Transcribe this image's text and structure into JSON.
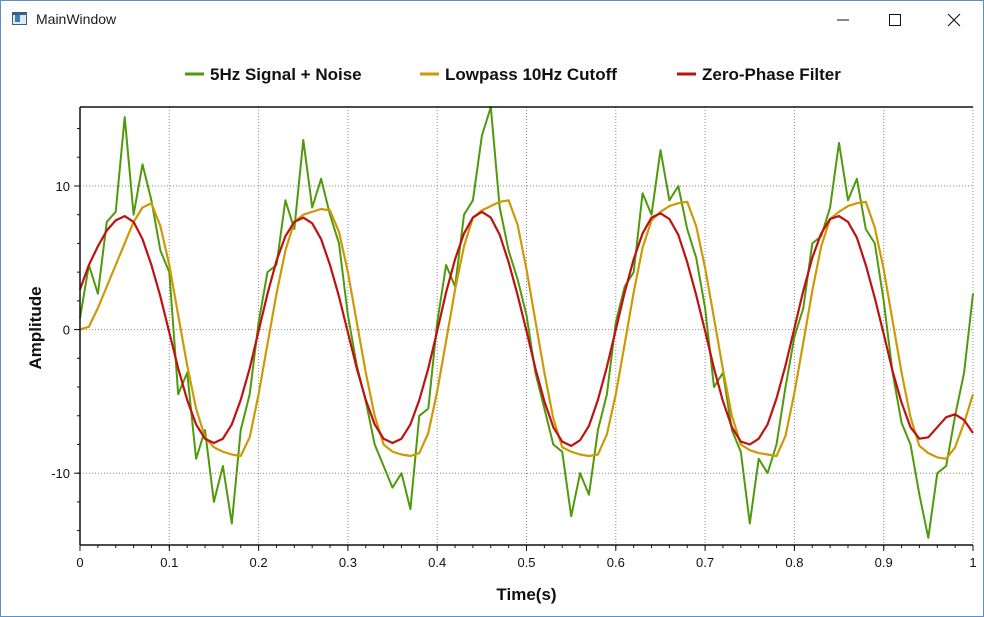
{
  "window": {
    "title": "MainWindow",
    "icons": {
      "app": "app-icon",
      "minimize": "minimize-icon",
      "maximize": "maximize-icon",
      "close": "close-icon"
    }
  },
  "chart_data": {
    "type": "line",
    "xlabel": "Time(s)",
    "ylabel": "Amplitude",
    "xlim": [
      0,
      1
    ],
    "ylim": [
      -15,
      15.5
    ],
    "xticks": [
      0,
      0.1,
      0.2,
      0.3,
      0.4,
      0.5,
      0.6,
      0.7,
      0.8,
      0.9,
      1
    ],
    "xtick_labels": [
      "0",
      "0.1",
      "0.2",
      "0.3",
      "0.4",
      "0.5",
      "0.6",
      "0.7",
      "0.8",
      "0.9",
      "1"
    ],
    "yticks": [
      -10,
      0,
      10
    ],
    "ytick_labels": [
      "-10",
      "0",
      "10"
    ],
    "grid": true,
    "legend_position": "top-center",
    "series": [
      {
        "name": "5Hz Signal + Noise",
        "color": "#4f9a0a",
        "x": [
          0,
          0.01,
          0.02,
          0.03,
          0.04,
          0.05,
          0.06,
          0.07,
          0.08,
          0.09,
          0.1,
          0.11,
          0.12,
          0.13,
          0.14,
          0.15,
          0.16,
          0.17,
          0.18,
          0.19,
          0.2,
          0.21,
          0.22,
          0.23,
          0.24,
          0.25,
          0.26,
          0.27,
          0.28,
          0.29,
          0.3,
          0.31,
          0.32,
          0.33,
          0.34,
          0.35,
          0.36,
          0.37,
          0.38,
          0.39,
          0.4,
          0.41,
          0.42,
          0.43,
          0.44,
          0.45,
          0.46,
          0.47,
          0.48,
          0.49,
          0.5,
          0.51,
          0.52,
          0.53,
          0.54,
          0.55,
          0.56,
          0.57,
          0.58,
          0.59,
          0.6,
          0.61,
          0.62,
          0.63,
          0.64,
          0.65,
          0.66,
          0.67,
          0.68,
          0.69,
          0.7,
          0.71,
          0.72,
          0.73,
          0.74,
          0.75,
          0.76,
          0.77,
          0.78,
          0.79,
          0.8,
          0.81,
          0.82,
          0.83,
          0.84,
          0.85,
          0.86,
          0.87,
          0.88,
          0.89,
          0.9,
          0.91,
          0.92,
          0.93,
          0.94,
          0.95,
          0.96,
          0.97,
          0.98,
          0.99,
          1
        ],
        "y": [
          0.8,
          4.5,
          2.5,
          7.5,
          8.2,
          14.8,
          8.0,
          11.5,
          9.0,
          5.5,
          4.0,
          -4.5,
          -3.0,
          -9.0,
          -7.0,
          -12.0,
          -9.5,
          -13.5,
          -7.0,
          -4.5,
          0.5,
          4.0,
          4.5,
          9.0,
          7.0,
          13.2,
          8.5,
          10.5,
          8.0,
          6.0,
          1.0,
          -2.5,
          -5.0,
          -8.0,
          -9.5,
          -11.0,
          -10.0,
          -12.5,
          -6.0,
          -5.5,
          0.5,
          4.5,
          3.0,
          8.0,
          9.0,
          13.5,
          15.5,
          8.5,
          5.5,
          3.5,
          1.0,
          -3.0,
          -5.5,
          -8.0,
          -8.5,
          -13.0,
          -10.0,
          -11.5,
          -7.0,
          -4.5,
          0.5,
          3.0,
          4.0,
          9.5,
          8.0,
          12.5,
          9.0,
          10.0,
          7.0,
          5.0,
          1.5,
          -4.0,
          -3.0,
          -7.0,
          -8.5,
          -13.5,
          -9.0,
          -10.0,
          -8.0,
          -4.0,
          -0.5,
          1.5,
          6.0,
          6.5,
          8.5,
          13.0,
          9.0,
          10.5,
          7.0,
          6.0,
          2.0,
          -3.0,
          -6.5,
          -8.0,
          -11.5,
          -14.5,
          -10.0,
          -9.5,
          -6.0,
          -3.0,
          2.5
        ]
      },
      {
        "name": "Lowpass 10Hz Cutoff",
        "color": "#cc9a06",
        "x": [
          0,
          0.01,
          0.02,
          0.03,
          0.04,
          0.05,
          0.06,
          0.07,
          0.08,
          0.09,
          0.1,
          0.11,
          0.12,
          0.13,
          0.14,
          0.15,
          0.16,
          0.17,
          0.18,
          0.19,
          0.2,
          0.21,
          0.22,
          0.23,
          0.24,
          0.25,
          0.26,
          0.27,
          0.28,
          0.29,
          0.3,
          0.31,
          0.32,
          0.33,
          0.34,
          0.35,
          0.36,
          0.37,
          0.38,
          0.39,
          0.4,
          0.41,
          0.42,
          0.43,
          0.44,
          0.45,
          0.46,
          0.47,
          0.48,
          0.49,
          0.5,
          0.51,
          0.52,
          0.53,
          0.54,
          0.55,
          0.56,
          0.57,
          0.58,
          0.59,
          0.6,
          0.61,
          0.62,
          0.63,
          0.64,
          0.65,
          0.66,
          0.67,
          0.68,
          0.69,
          0.7,
          0.71,
          0.72,
          0.73,
          0.74,
          0.75,
          0.76,
          0.77,
          0.78,
          0.79,
          0.8,
          0.81,
          0.82,
          0.83,
          0.84,
          0.85,
          0.86,
          0.87,
          0.88,
          0.89,
          0.9,
          0.91,
          0.92,
          0.93,
          0.94,
          0.95,
          0.96,
          0.97,
          0.98,
          0.99,
          1
        ],
        "y": [
          0.0,
          0.2,
          1.5,
          3.0,
          4.5,
          6.0,
          7.5,
          8.5,
          8.8,
          7.2,
          4.5,
          1.0,
          -2.5,
          -5.5,
          -7.5,
          -8.2,
          -8.5,
          -8.7,
          -8.8,
          -7.5,
          -4.5,
          -1.0,
          2.5,
          5.5,
          7.5,
          8.0,
          8.2,
          8.4,
          8.3,
          6.8,
          4.0,
          0.5,
          -3.0,
          -6.0,
          -8.0,
          -8.5,
          -8.7,
          -8.8,
          -8.6,
          -7.2,
          -4.3,
          -0.8,
          2.8,
          5.8,
          7.8,
          8.3,
          8.6,
          8.9,
          9.0,
          7.3,
          4.2,
          0.6,
          -3.0,
          -6.2,
          -8.2,
          -8.5,
          -8.7,
          -8.8,
          -8.7,
          -7.3,
          -4.5,
          -1.0,
          2.6,
          5.7,
          7.6,
          8.2,
          8.6,
          8.8,
          8.9,
          7.2,
          4.3,
          0.8,
          -2.8,
          -6.0,
          -8.0,
          -8.4,
          -8.6,
          -8.7,
          -8.8,
          -7.4,
          -4.4,
          -0.9,
          2.7,
          5.8,
          7.7,
          8.2,
          8.6,
          8.8,
          8.9,
          7.1,
          4.2,
          0.6,
          -3.0,
          -6.1,
          -8.1,
          -8.6,
          -8.9,
          -9.0,
          -8.2,
          -6.5,
          -4.5
        ]
      },
      {
        "name": "Zero-Phase Filter",
        "color": "#bf1111",
        "x": [
          0,
          0.01,
          0.02,
          0.03,
          0.04,
          0.05,
          0.06,
          0.07,
          0.08,
          0.09,
          0.1,
          0.11,
          0.12,
          0.13,
          0.14,
          0.15,
          0.16,
          0.17,
          0.18,
          0.19,
          0.2,
          0.21,
          0.22,
          0.23,
          0.24,
          0.25,
          0.26,
          0.27,
          0.28,
          0.29,
          0.3,
          0.31,
          0.32,
          0.33,
          0.34,
          0.35,
          0.36,
          0.37,
          0.38,
          0.39,
          0.4,
          0.41,
          0.42,
          0.43,
          0.44,
          0.45,
          0.46,
          0.47,
          0.48,
          0.49,
          0.5,
          0.51,
          0.52,
          0.53,
          0.54,
          0.55,
          0.56,
          0.57,
          0.58,
          0.59,
          0.6,
          0.61,
          0.62,
          0.63,
          0.64,
          0.65,
          0.66,
          0.67,
          0.68,
          0.69,
          0.7,
          0.71,
          0.72,
          0.73,
          0.74,
          0.75,
          0.76,
          0.77,
          0.78,
          0.79,
          0.8,
          0.81,
          0.82,
          0.83,
          0.84,
          0.85,
          0.86,
          0.87,
          0.88,
          0.89,
          0.9,
          0.91,
          0.92,
          0.93,
          0.94,
          0.95,
          0.96,
          0.97,
          0.98,
          0.99,
          1
        ],
        "y": [
          2.8,
          4.5,
          5.8,
          6.9,
          7.6,
          7.9,
          7.5,
          6.3,
          4.5,
          2.3,
          -0.2,
          -2.7,
          -4.9,
          -6.6,
          -7.6,
          -7.9,
          -7.6,
          -6.6,
          -4.9,
          -2.7,
          -0.1,
          2.5,
          4.8,
          6.5,
          7.5,
          7.8,
          7.4,
          6.3,
          4.5,
          2.3,
          -0.2,
          -2.7,
          -4.9,
          -6.6,
          -7.6,
          -7.9,
          -7.6,
          -6.6,
          -4.9,
          -2.7,
          -0.1,
          2.6,
          4.9,
          6.7,
          7.8,
          8.2,
          7.8,
          6.6,
          4.7,
          2.4,
          -0.1,
          -2.7,
          -5.0,
          -6.8,
          -7.8,
          -8.1,
          -7.7,
          -6.7,
          -4.9,
          -2.6,
          0.0,
          2.6,
          4.9,
          6.7,
          7.8,
          8.1,
          7.7,
          6.6,
          4.7,
          2.4,
          -0.1,
          -2.7,
          -5.0,
          -6.8,
          -7.8,
          -8.0,
          -7.6,
          -6.6,
          -4.8,
          -2.5,
          0.1,
          2.7,
          5.0,
          6.7,
          7.7,
          7.9,
          7.5,
          6.4,
          4.5,
          2.2,
          -0.3,
          -2.9,
          -5.1,
          -6.8,
          -7.6,
          -7.5,
          -6.8,
          -6.1,
          -5.9,
          -6.3,
          -7.2
        ]
      }
    ]
  }
}
